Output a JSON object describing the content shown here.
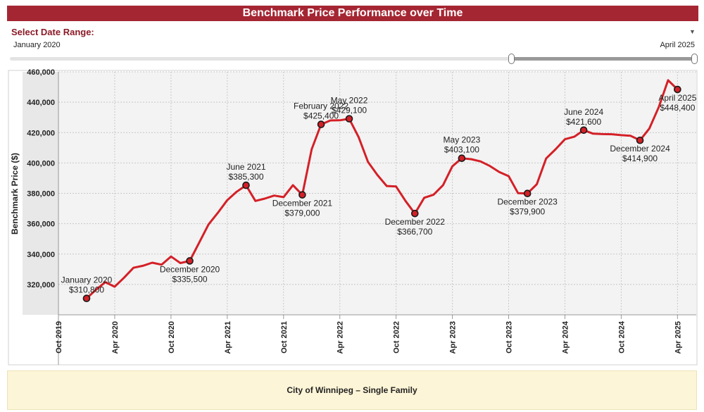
{
  "header": {
    "title": "Benchmark Price Performance over Time"
  },
  "date_range": {
    "label": "Select Date Range:",
    "start": "January 2020",
    "end": "April 2025"
  },
  "footer": {
    "text": "City of Winnipeg – Single Family"
  },
  "colors": {
    "header_bg": "#a52633",
    "line": "#d42027",
    "marker": "#d42027",
    "footer_bg": "#fdf5d7"
  },
  "chart_data": {
    "type": "line",
    "ylabel": "Benchmark Price ($)",
    "ylim": [
      300000,
      460000
    ],
    "xlim": [
      "2019-10",
      "2025-06"
    ],
    "grid": true,
    "y_ticks": [
      {
        "value": 320000,
        "label": "320,000"
      },
      {
        "value": 340000,
        "label": "340,000"
      },
      {
        "value": 360000,
        "label": "360,000"
      },
      {
        "value": 380000,
        "label": "380,000"
      },
      {
        "value": 400000,
        "label": "400,000"
      },
      {
        "value": 420000,
        "label": "420,000"
      },
      {
        "value": 440000,
        "label": "440,000"
      },
      {
        "value": 460000,
        "label": "460,000"
      }
    ],
    "x_ticks": [
      {
        "date": "2019-10",
        "label": "Oct 2019"
      },
      {
        "date": "2020-04",
        "label": "Apr 2020"
      },
      {
        "date": "2020-10",
        "label": "Oct 2020"
      },
      {
        "date": "2021-04",
        "label": "Apr 2021"
      },
      {
        "date": "2021-10",
        "label": "Oct 2021"
      },
      {
        "date": "2022-04",
        "label": "Apr 2022"
      },
      {
        "date": "2022-10",
        "label": "Oct 2022"
      },
      {
        "date": "2023-04",
        "label": "Apr 2023"
      },
      {
        "date": "2023-10",
        "label": "Oct 2023"
      },
      {
        "date": "2024-04",
        "label": "Apr 2024"
      },
      {
        "date": "2024-10",
        "label": "Oct 2024"
      },
      {
        "date": "2025-04",
        "label": "Apr 2025"
      }
    ],
    "series": [
      {
        "x": [
          "2020-01",
          "2020-02",
          "2020-03",
          "2020-04",
          "2020-05",
          "2020-06",
          "2020-07",
          "2020-08",
          "2020-09",
          "2020-10",
          "2020-11",
          "2020-12",
          "2021-01",
          "2021-02",
          "2021-03",
          "2021-04",
          "2021-05",
          "2021-06",
          "2021-07",
          "2021-08",
          "2021-09",
          "2021-10",
          "2021-11",
          "2021-12",
          "2022-01",
          "2022-02",
          "2022-03",
          "2022-04",
          "2022-05",
          "2022-06",
          "2022-07",
          "2022-08",
          "2022-09",
          "2022-10",
          "2022-11",
          "2022-12",
          "2023-01",
          "2023-02",
          "2023-03",
          "2023-04",
          "2023-05",
          "2023-06",
          "2023-07",
          "2023-08",
          "2023-09",
          "2023-10",
          "2023-11",
          "2023-12",
          "2024-01",
          "2024-02",
          "2024-03",
          "2024-04",
          "2024-05",
          "2024-06",
          "2024-07",
          "2024-08",
          "2024-09",
          "2024-10",
          "2024-11",
          "2024-12",
          "2025-01",
          "2025-02",
          "2025-03",
          "2025-04"
        ],
        "values": [
          310800,
          316500,
          321500,
          318500,
          324500,
          331000,
          332300,
          334300,
          333000,
          338400,
          334100,
          335500,
          347500,
          359500,
          367200,
          375500,
          381000,
          385300,
          375000,
          376500,
          378500,
          377500,
          385400,
          379000,
          409000,
          425400,
          428000,
          428100,
          429100,
          417000,
          400700,
          392100,
          384800,
          384500,
          375000,
          366700,
          377100,
          379100,
          385400,
          397800,
          403100,
          402500,
          401000,
          398000,
          394000,
          391300,
          380100,
          379900,
          386000,
          403000,
          409000,
          415600,
          417300,
          421600,
          419300,
          419000,
          418900,
          418300,
          417900,
          414900,
          422700,
          436700,
          454500,
          448400
        ]
      }
    ],
    "annotations": [
      {
        "x": "2020-01",
        "value": 310800,
        "label": "January 2020",
        "price": "$310,800",
        "pos": "above"
      },
      {
        "x": "2020-12",
        "value": 335500,
        "label": "December 2020",
        "price": "$335,500",
        "pos": "below"
      },
      {
        "x": "2021-06",
        "value": 385300,
        "label": "June 2021",
        "price": "$385,300",
        "pos": "above"
      },
      {
        "x": "2021-12",
        "value": 379000,
        "label": "December 2021",
        "price": "$379,000",
        "pos": "below"
      },
      {
        "x": "2022-02",
        "value": 425400,
        "label": "February 2022",
        "price": "$425,400",
        "pos": "above"
      },
      {
        "x": "2022-05",
        "value": 429100,
        "label": "May 2022",
        "price": "$429,100",
        "pos": "above"
      },
      {
        "x": "2022-12",
        "value": 366700,
        "label": "December 2022",
        "price": "$366,700",
        "pos": "below"
      },
      {
        "x": "2023-05",
        "value": 403100,
        "label": "May 2023",
        "price": "$403,100",
        "pos": "above"
      },
      {
        "x": "2023-12",
        "value": 379900,
        "label": "December 2023",
        "price": "$379,900",
        "pos": "below"
      },
      {
        "x": "2024-06",
        "value": 421600,
        "label": "June 2024",
        "price": "$421,600",
        "pos": "above"
      },
      {
        "x": "2024-12",
        "value": 414900,
        "label": "December 2024",
        "price": "$414,900",
        "pos": "below"
      },
      {
        "x": "2025-04",
        "value": 448400,
        "label": "April 2025",
        "price": "$448,400",
        "pos": "below"
      }
    ]
  }
}
